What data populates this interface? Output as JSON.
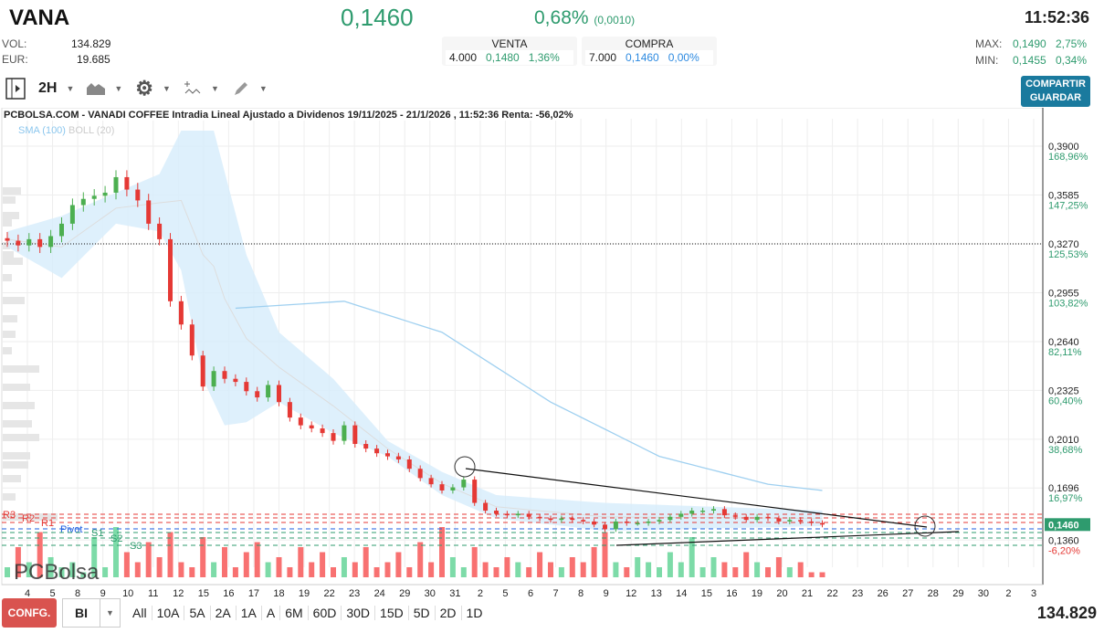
{
  "header": {
    "ticker": "VANA",
    "price": "0,1460",
    "change_pct": "0,68%",
    "change_abs": "(0,0010)",
    "time": "11:52:36",
    "vol_label": "VOL:",
    "vol": "134.829",
    "eur_label": "EUR:",
    "eur": "19.685",
    "max_label": "MAX:",
    "max": "0,1490",
    "max_pct": "2,75%",
    "min_label": "MIN:",
    "min": "0,1455",
    "min_pct": "0,34%"
  },
  "book": {
    "sell": {
      "label": "VENTA",
      "qty": "4.000",
      "price": "0,1480",
      "pct": "1,36%"
    },
    "buy": {
      "label": "COMPRA",
      "qty": "7.000",
      "price": "0,1460",
      "pct": "0,00%"
    }
  },
  "toolbar": {
    "interval": "2H",
    "share": "COMPARTIR",
    "save": "GUARDAR"
  },
  "chart": {
    "title": "PCBOLSA.COM - VANADI COFFEE Intradia Lineal Ajustado a Dividenos 19/11/2025 - 21/1/2026 , 11:52:36 Renta: -56,02%",
    "sma": "SMA (100)",
    "boll": "BOLL (20)",
    "logo": "PCBolsa"
  },
  "chart_data": {
    "type": "candlestick",
    "y_ticks": [
      {
        "v": "0,3900",
        "p": "168,96%"
      },
      {
        "v": "0,3585",
        "p": "147,25%"
      },
      {
        "v": "0,3270",
        "p": "125,53%"
      },
      {
        "v": "0,2955",
        "p": "103,82%"
      },
      {
        "v": "0,2640",
        "p": "82,11%"
      },
      {
        "v": "0,2325",
        "p": "60,40%"
      },
      {
        "v": "0,2010",
        "p": "38,68%"
      },
      {
        "v": "0,1696",
        "p": "16,97%"
      },
      {
        "v": "0,1360",
        "p": "-6,20%"
      }
    ],
    "last_price": "0,1460",
    "ylim": [
      0.132,
      0.4
    ],
    "reference_line": 0.327,
    "x_labels": [
      "4",
      "5",
      "8",
      "9",
      "10",
      "11",
      "12",
      "15",
      "16",
      "17",
      "18",
      "19",
      "22",
      "23",
      "24",
      "29",
      "30",
      "31",
      "2",
      "5",
      "6",
      "7",
      "8",
      "9",
      "12",
      "13",
      "14",
      "15",
      "16",
      "19",
      "20",
      "21",
      "22",
      "23",
      "26",
      "27",
      "28",
      "29",
      "30",
      "2",
      "3"
    ],
    "closes": [
      0.329,
      0.326,
      0.33,
      0.325,
      0.332,
      0.34,
      0.352,
      0.356,
      0.358,
      0.36,
      0.37,
      0.362,
      0.355,
      0.34,
      0.33,
      0.29,
      0.275,
      0.255,
      0.235,
      0.245,
      0.24,
      0.238,
      0.232,
      0.228,
      0.236,
      0.225,
      0.215,
      0.21,
      0.208,
      0.205,
      0.2,
      0.21,
      0.198,
      0.195,
      0.192,
      0.19,
      0.188,
      0.182,
      0.176,
      0.172,
      0.168,
      0.17,
      0.175,
      0.16,
      0.155,
      0.153,
      0.152,
      0.153,
      0.151,
      0.15,
      0.149,
      0.15,
      0.149,
      0.148,
      0.146,
      0.143,
      0.148,
      0.147,
      0.147,
      0.148,
      0.149,
      0.151,
      0.153,
      0.155,
      0.155,
      0.156,
      0.152,
      0.151,
      0.149,
      0.151,
      0.15,
      0.148,
      0.149,
      0.148,
      0.147,
      0.146
    ],
    "volumes": [
      2,
      6,
      3,
      9,
      4,
      2,
      3,
      1,
      8,
      2,
      10,
      5,
      3,
      7,
      4,
      9,
      3,
      2,
      8,
      3,
      6,
      2,
      5,
      7,
      3,
      4,
      2,
      6,
      3,
      5,
      2,
      4,
      3,
      6,
      2,
      3,
      5,
      2,
      7,
      3,
      10,
      4,
      2,
      6,
      3,
      2,
      4,
      3,
      2,
      5,
      3,
      2,
      4,
      3,
      6,
      9,
      3,
      2,
      4,
      3,
      2,
      5,
      3,
      8,
      2,
      4,
      3,
      2,
      5,
      3,
      2,
      4,
      2,
      3,
      1,
      1
    ],
    "boll_upper": [
      [
        0,
        0.335
      ],
      [
        5,
        0.345
      ],
      [
        10,
        0.36
      ],
      [
        14,
        0.372
      ],
      [
        16,
        0.4
      ],
      [
        19,
        0.4
      ],
      [
        22,
        0.32
      ],
      [
        25,
        0.27
      ],
      [
        30,
        0.24
      ],
      [
        35,
        0.2
      ],
      [
        40,
        0.18
      ],
      [
        45,
        0.165
      ],
      [
        55,
        0.16
      ],
      [
        75,
        0.155
      ]
    ],
    "boll_lower": [
      [
        0,
        0.325
      ],
      [
        5,
        0.305
      ],
      [
        10,
        0.34
      ],
      [
        14,
        0.335
      ],
      [
        16,
        0.31
      ],
      [
        18,
        0.24
      ],
      [
        20,
        0.21
      ],
      [
        22,
        0.212
      ],
      [
        25,
        0.225
      ],
      [
        30,
        0.205
      ],
      [
        35,
        0.19
      ],
      [
        40,
        0.165
      ],
      [
        45,
        0.15
      ],
      [
        55,
        0.142
      ],
      [
        75,
        0.145
      ]
    ],
    "sma100": [
      [
        21,
        0.2855
      ],
      [
        31,
        0.29
      ],
      [
        40,
        0.27
      ],
      [
        50,
        0.225
      ],
      [
        60,
        0.19
      ],
      [
        70,
        0.172
      ],
      [
        75,
        0.168
      ]
    ],
    "pivots": [
      "R3",
      "R2",
      "R1",
      "Pivot",
      "S1",
      "S2",
      "S3"
    ],
    "colors": {
      "up": "#4caf50",
      "down": "#e53935",
      "vol_up": "#7ddba8",
      "vol_down": "#f87171",
      "band": "#d6ecfb",
      "sma": "#9fd0f0",
      "price_tag": "#2e9b6e"
    }
  },
  "bottom": {
    "config": "CONFG.",
    "mode": "BI",
    "timeframes": [
      "All",
      "10A",
      "5A",
      "2A",
      "1A",
      "A",
      "6M",
      "60D",
      "30D",
      "15D",
      "5D",
      "2D",
      "1D"
    ],
    "total_volume": "134.829"
  }
}
